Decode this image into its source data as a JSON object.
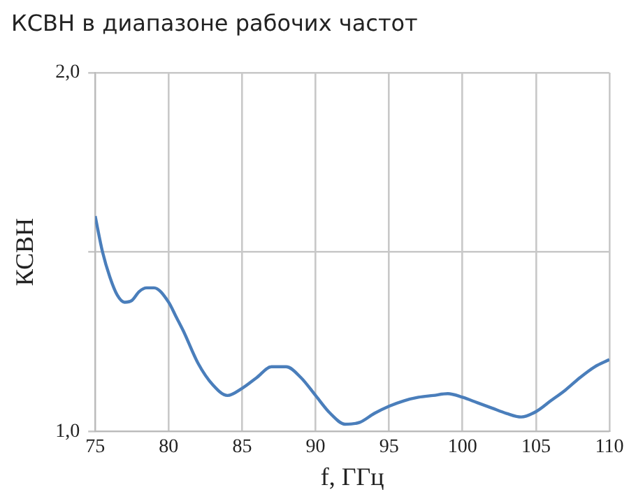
{
  "chart_data": {
    "type": "line",
    "title": "КСВН в диапазоне рабочих частот",
    "xlabel": "f, ГГц",
    "ylabel": "КСВН",
    "x": [
      75,
      75.5,
      76,
      76.5,
      77,
      77.5,
      78,
      78.5,
      79,
      80,
      80.5,
      81,
      82,
      83,
      84,
      85,
      86,
      87,
      88,
      89,
      90,
      91,
      92,
      93,
      94,
      95,
      96,
      97,
      98,
      99,
      100,
      101,
      102,
      103,
      104,
      105,
      106,
      107,
      108,
      109,
      110
    ],
    "series": [
      {
        "color": "#4a7ebb",
        "values": [
          1.6,
          1.5,
          1.43,
          1.38,
          1.36,
          1.365,
          1.39,
          1.4,
          1.4,
          1.36,
          1.32,
          1.28,
          1.19,
          1.13,
          1.1,
          1.12,
          1.15,
          1.18,
          1.18,
          1.15,
          1.1,
          1.05,
          1.02,
          1.025,
          1.05,
          1.07,
          1.085,
          1.095,
          1.1,
          1.105,
          1.095,
          1.08,
          1.065,
          1.05,
          1.04,
          1.055,
          1.085,
          1.115,
          1.15,
          1.18,
          1.2
        ]
      }
    ],
    "xlim": [
      75,
      110
    ],
    "xticks": [
      75,
      80,
      85,
      90,
      95,
      100,
      105,
      110
    ],
    "ylim": [
      1,
      2
    ],
    "yticks": [
      {
        "value": 1,
        "label": "1,0"
      },
      {
        "value": 1.5,
        "label": null
      },
      {
        "value": 2,
        "label": "2,0"
      }
    ],
    "grid": true,
    "legend": false,
    "marker": "none",
    "line_style": "solid"
  }
}
